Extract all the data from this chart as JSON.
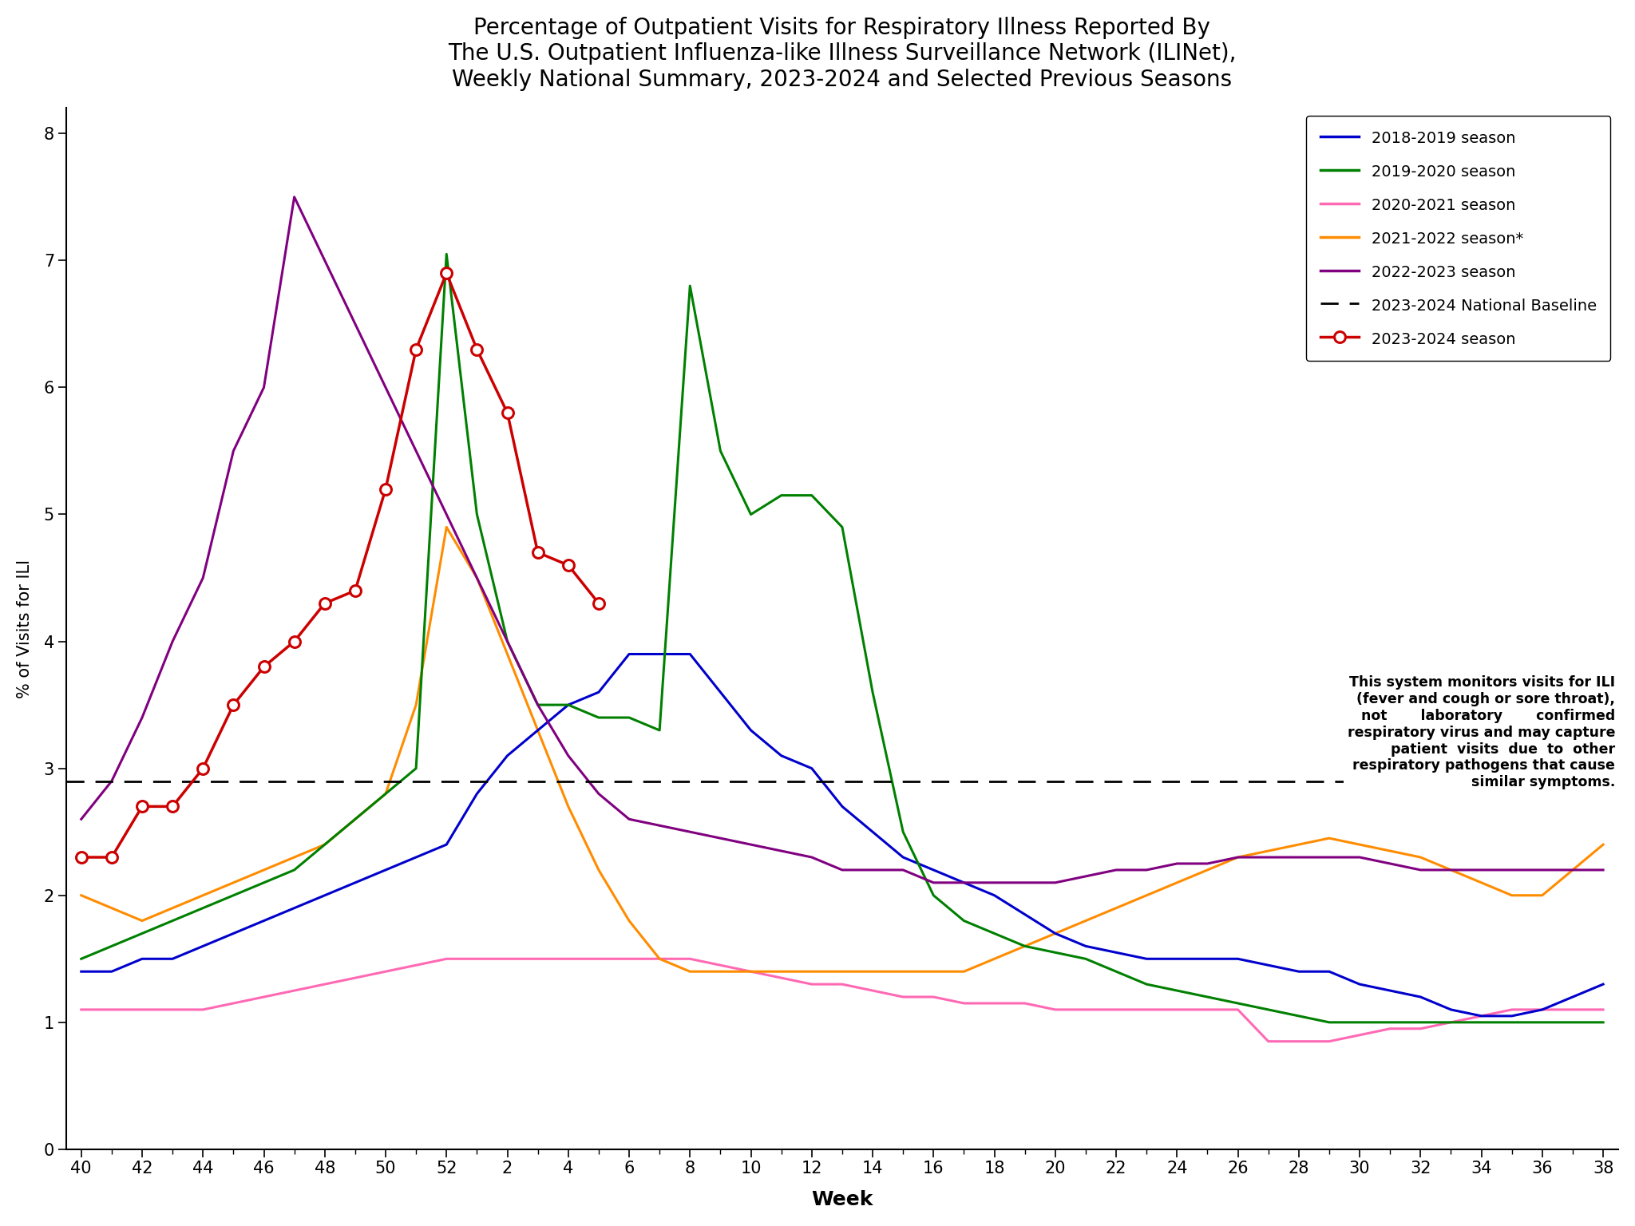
{
  "title": "Percentage of Outpatient Visits for Respiratory Illness Reported By\nThe U.S. Outpatient Influenza-like Illness Surveillance Network (ILINet),\nWeekly National Summary, 2023-2024 and Selected Previous Seasons",
  "xlabel": "Week",
  "ylabel": "% of Visits for ILI",
  "baseline": 2.9,
  "ylim": [
    0,
    8.2
  ],
  "yticks": [
    0,
    1,
    2,
    3,
    4,
    5,
    6,
    7,
    8
  ],
  "x_tick_labels": [
    40,
    42,
    44,
    46,
    48,
    50,
    52,
    2,
    4,
    6,
    8,
    10,
    12,
    14,
    16,
    18,
    20,
    22,
    24,
    26,
    28,
    30,
    32,
    34,
    36,
    38
  ],
  "annotation": "This system monitors visits for ILI\n(fever and cough or sore throat),\nnot       laboratory       confirmed\nrespiratory virus and may capture\npatient  visits  due  to  other\nrespiratory pathogens that cause\nsimilar symptoms.",
  "season_2018_2019": {
    "label": "2018-2019 season",
    "color": "#0000CC",
    "weeks": [
      40,
      41,
      42,
      43,
      44,
      45,
      46,
      47,
      48,
      49,
      50,
      51,
      52,
      1,
      2,
      3,
      4,
      5,
      6,
      7,
      8,
      9,
      10,
      11,
      12,
      13,
      14,
      15,
      16,
      17,
      18,
      19,
      20,
      21,
      22,
      23,
      24,
      25,
      26,
      27,
      28,
      29,
      30,
      31,
      32,
      33,
      34,
      35,
      36,
      37,
      38
    ],
    "y": [
      1.4,
      1.4,
      1.5,
      1.5,
      1.6,
      1.7,
      1.8,
      1.9,
      2.0,
      2.1,
      2.2,
      2.3,
      2.4,
      2.8,
      3.1,
      3.3,
      3.5,
      3.6,
      3.9,
      3.9,
      3.9,
      3.6,
      3.3,
      3.1,
      3.0,
      2.7,
      2.5,
      2.3,
      2.2,
      2.1,
      2.0,
      1.85,
      1.7,
      1.6,
      1.55,
      1.5,
      1.5,
      1.5,
      1.5,
      1.45,
      1.4,
      1.4,
      1.3,
      1.25,
      1.2,
      1.1,
      1.05,
      1.05,
      1.1,
      1.2,
      1.3
    ]
  },
  "season_2019_2020": {
    "label": "2019-2020 season",
    "color": "#008000",
    "weeks": [
      40,
      41,
      42,
      43,
      44,
      45,
      46,
      47,
      48,
      49,
      50,
      51,
      52,
      1,
      2,
      3,
      4,
      5,
      6,
      7,
      8,
      9,
      10,
      11,
      12,
      13,
      14,
      15,
      16,
      17,
      18,
      19,
      20,
      21,
      22,
      23,
      24,
      25,
      26,
      27,
      28,
      29,
      30,
      31,
      32,
      33,
      34,
      35,
      36,
      37,
      38
    ],
    "y": [
      1.5,
      1.6,
      1.7,
      1.8,
      1.9,
      2.0,
      2.1,
      2.2,
      2.4,
      2.6,
      2.8,
      3.0,
      7.05,
      5.0,
      4.0,
      3.5,
      3.5,
      3.4,
      3.4,
      3.3,
      6.8,
      5.5,
      5.0,
      5.15,
      5.15,
      4.9,
      3.6,
      2.5,
      2.0,
      1.8,
      1.7,
      1.6,
      1.55,
      1.5,
      1.4,
      1.3,
      1.25,
      1.2,
      1.15,
      1.1,
      1.05,
      1.0,
      1.0,
      1.0,
      1.0,
      1.0,
      1.0,
      1.0,
      1.0,
      1.0,
      1.0
    ]
  },
  "season_2020_2021": {
    "label": "2020-2021 season",
    "color": "#FF69B4",
    "weeks": [
      40,
      41,
      42,
      43,
      44,
      45,
      46,
      47,
      48,
      49,
      50,
      51,
      52,
      1,
      2,
      3,
      4,
      5,
      6,
      7,
      8,
      9,
      10,
      11,
      12,
      13,
      14,
      15,
      16,
      17,
      18,
      19,
      20,
      21,
      22,
      23,
      24,
      25,
      26,
      27,
      28,
      29,
      30,
      31,
      32,
      33,
      34,
      35,
      36,
      37,
      38
    ],
    "y": [
      1.1,
      1.1,
      1.1,
      1.1,
      1.1,
      1.15,
      1.2,
      1.25,
      1.3,
      1.35,
      1.4,
      1.45,
      1.5,
      1.5,
      1.5,
      1.5,
      1.5,
      1.5,
      1.5,
      1.5,
      1.5,
      1.45,
      1.4,
      1.35,
      1.3,
      1.3,
      1.25,
      1.2,
      1.2,
      1.15,
      1.15,
      1.15,
      1.1,
      1.1,
      1.1,
      1.1,
      1.1,
      1.1,
      1.1,
      0.85,
      0.85,
      0.85,
      0.9,
      0.95,
      0.95,
      1.0,
      1.05,
      1.1,
      1.1,
      1.1,
      1.1
    ]
  },
  "season_2021_2022": {
    "label": "2021-2022 season*",
    "color": "#FF8C00",
    "weeks": [
      40,
      41,
      42,
      43,
      44,
      45,
      46,
      47,
      48,
      49,
      50,
      51,
      52,
      1,
      2,
      3,
      4,
      5,
      6,
      7,
      8,
      9,
      10,
      11,
      12,
      13,
      14,
      15,
      16,
      17,
      18,
      19,
      20,
      21,
      22,
      23,
      24,
      25,
      26,
      27,
      28,
      29,
      30,
      31,
      32,
      33,
      34,
      35,
      36,
      37,
      38
    ],
    "y": [
      2.0,
      1.9,
      1.8,
      1.9,
      2.0,
      2.1,
      2.2,
      2.3,
      2.4,
      2.6,
      2.8,
      3.5,
      4.9,
      4.5,
      3.9,
      3.3,
      2.7,
      2.2,
      1.8,
      1.5,
      1.4,
      1.4,
      1.4,
      1.4,
      1.4,
      1.4,
      1.4,
      1.4,
      1.4,
      1.4,
      1.5,
      1.6,
      1.7,
      1.8,
      1.9,
      2.0,
      2.1,
      2.2,
      2.3,
      2.35,
      2.4,
      2.45,
      2.4,
      2.35,
      2.3,
      2.2,
      2.1,
      2.0,
      2.0,
      2.2,
      2.4
    ]
  },
  "season_2022_2023": {
    "label": "2022-2023 season",
    "color": "#800080",
    "weeks": [
      40,
      41,
      42,
      43,
      44,
      45,
      46,
      47,
      48,
      49,
      50,
      51,
      52,
      1,
      2,
      3,
      4,
      5,
      6,
      7,
      8,
      9,
      10,
      11,
      12,
      13,
      14,
      15,
      16,
      17,
      18,
      19,
      20,
      21,
      22,
      23,
      24,
      25,
      26,
      27,
      28,
      29,
      30,
      31,
      32,
      33,
      34,
      35,
      36,
      37,
      38
    ],
    "y": [
      2.6,
      2.9,
      3.4,
      4.0,
      4.5,
      5.5,
      6.0,
      7.5,
      7.0,
      6.5,
      6.0,
      5.5,
      5.0,
      4.5,
      4.0,
      3.5,
      3.1,
      2.8,
      2.6,
      2.55,
      2.5,
      2.45,
      2.4,
      2.35,
      2.3,
      2.2,
      2.2,
      2.2,
      2.1,
      2.1,
      2.1,
      2.1,
      2.1,
      2.15,
      2.2,
      2.2,
      2.25,
      2.25,
      2.3,
      2.3,
      2.3,
      2.3,
      2.3,
      2.25,
      2.2,
      2.2,
      2.2,
      2.2,
      2.2,
      2.2,
      2.2
    ]
  },
  "season_2023_2024": {
    "label": "2023-2024 season",
    "color": "#CC0000",
    "weeks": [
      40,
      41,
      42,
      43,
      44,
      45,
      46,
      47,
      48,
      49,
      50,
      51,
      52,
      1,
      2,
      3,
      4,
      5
    ],
    "y": [
      2.3,
      2.3,
      2.7,
      2.7,
      3.0,
      3.5,
      3.8,
      4.0,
      4.3,
      4.4,
      5.2,
      6.3,
      6.9,
      6.3,
      5.8,
      4.7,
      4.6,
      4.3
    ]
  }
}
